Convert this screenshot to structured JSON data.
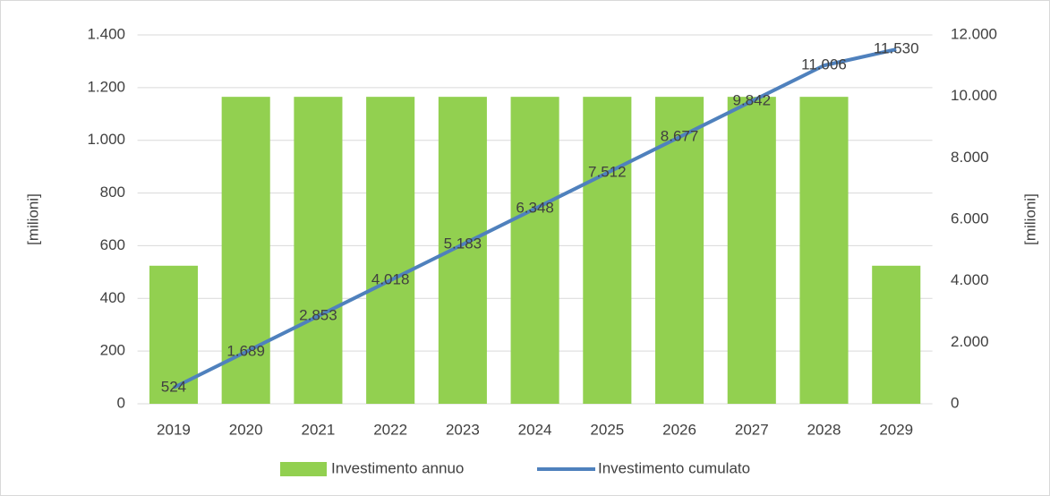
{
  "chart_data": {
    "type": "bar_line",
    "categories": [
      "2019",
      "2020",
      "2021",
      "2022",
      "2023",
      "2024",
      "2025",
      "2026",
      "2027",
      "2028",
      "2029"
    ],
    "series": [
      {
        "name": "Investimento annuo",
        "type": "bar",
        "color": "#92d050",
        "axis": "y",
        "values": [
          524,
          1165,
          1165,
          1165,
          1165,
          1165,
          1165,
          1165,
          1165,
          1165,
          524
        ]
      },
      {
        "name": "Investimento cumulato",
        "type": "line",
        "color": "#4f81bd",
        "axis": "y2",
        "values": [
          524,
          1689,
          2853,
          4018,
          5183,
          6348,
          7512,
          8677,
          9842,
          11006,
          11530
        ],
        "value_labels": [
          "524",
          "1.689",
          "2.853",
          "4.018",
          "5.183",
          "6.348",
          "7.512",
          "8.677",
          "9.842",
          "11.006",
          "11.530"
        ]
      }
    ],
    "ylabel": "[milioni]",
    "y2label": "[milioni]",
    "ylim": [
      0,
      1400
    ],
    "yticks": [
      0,
      200,
      400,
      600,
      800,
      {
        "value": 1000,
        "label": "1.000"
      },
      {
        "value": 1200,
        "label": "1.200"
      },
      {
        "value": 1400,
        "label": "1.400"
      }
    ],
    "y2lim": [
      0,
      12000
    ],
    "y2ticks": [
      0,
      {
        "value": 2000,
        "label": "2.000"
      },
      {
        "value": 4000,
        "label": "4.000"
      },
      {
        "value": 6000,
        "label": "6.000"
      },
      {
        "value": 8000,
        "label": "8.000"
      },
      {
        "value": 10000,
        "label": "10.000"
      },
      {
        "value": 12000,
        "label": "12.000"
      }
    ],
    "grid": true,
    "legend": "bottom"
  }
}
